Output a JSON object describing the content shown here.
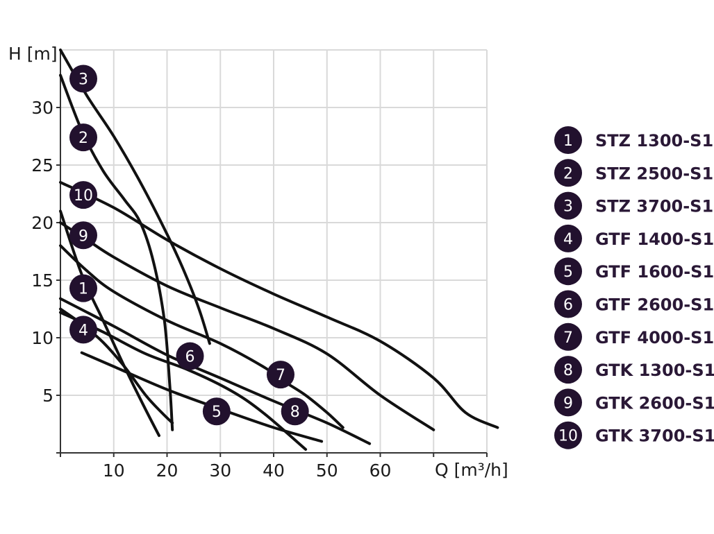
{
  "chart_data": {
    "type": "line",
    "xlabel": "Q [m³/h]",
    "ylabel": "H [m]",
    "xlim": [
      0,
      80
    ],
    "ylim": [
      0,
      35
    ],
    "x_ticks": [
      10,
      20,
      30,
      40,
      50,
      60
    ],
    "y_ticks": [
      5,
      10,
      15,
      20,
      25,
      30
    ],
    "grid": true,
    "legend": "right",
    "colors": {
      "curve": "#111111",
      "marker": "#22112e",
      "legend_text": "#2a1836",
      "grid": "#d9d9d9"
    },
    "series": [
      {
        "id": "1",
        "name": "STZ 1300-S1",
        "marker": [
          4.3,
          14.3
        ],
        "points": [
          [
            0,
            21
          ],
          [
            4,
            15.5
          ],
          [
            8,
            11.5
          ],
          [
            12,
            7.5
          ],
          [
            15.5,
            4.2
          ],
          [
            18.5,
            1.5
          ]
        ]
      },
      {
        "id": "2",
        "name": "STZ 2500-S1",
        "marker": [
          4.3,
          27.4
        ],
        "points": [
          [
            0,
            32.8
          ],
          [
            4,
            28
          ],
          [
            8,
            24.5
          ],
          [
            12,
            22
          ],
          [
            15,
            20
          ],
          [
            17.5,
            16.5
          ],
          [
            19.5,
            11.5
          ],
          [
            20.5,
            6
          ],
          [
            21,
            2
          ]
        ]
      },
      {
        "id": "3",
        "name": "STZ 3700-S1",
        "marker": [
          4.3,
          32.5
        ],
        "points": [
          [
            0,
            35
          ],
          [
            5,
            31
          ],
          [
            10,
            27.5
          ],
          [
            15,
            23.5
          ],
          [
            20,
            19
          ],
          [
            23,
            16
          ],
          [
            26,
            12.5
          ],
          [
            28,
            9.5
          ]
        ]
      },
      {
        "id": "4",
        "name": "GTF 1400-S1",
        "marker": [
          4.3,
          10.7
        ],
        "points": [
          [
            0,
            12.5
          ],
          [
            4,
            11.2
          ],
          [
            8,
            9.6
          ],
          [
            12,
            7.5
          ],
          [
            16,
            5
          ],
          [
            19,
            3.5
          ],
          [
            21,
            2.6
          ]
        ]
      },
      {
        "id": "5",
        "name": "GTF 1600-S1",
        "marker": [
          29.3,
          3.6
        ],
        "points": [
          [
            4,
            8.7
          ],
          [
            10,
            7.5
          ],
          [
            20,
            5.5
          ],
          [
            30,
            3.8
          ],
          [
            40,
            2.2
          ],
          [
            49,
            1
          ]
        ]
      },
      {
        "id": "6",
        "name": "GTF 2600-S1",
        "marker": [
          24.3,
          8.4
        ],
        "points": [
          [
            0,
            12.2
          ],
          [
            8,
            10.5
          ],
          [
            16,
            8.6
          ],
          [
            24,
            7.2
          ],
          [
            32,
            5.4
          ],
          [
            38,
            3.5
          ],
          [
            46,
            0.3
          ]
        ]
      },
      {
        "id": "7",
        "name": "GTF 4000-S1",
        "marker": [
          41.3,
          6.8
        ],
        "points": [
          [
            0,
            18
          ],
          [
            5,
            15.8
          ],
          [
            10,
            14
          ],
          [
            20,
            11.5
          ],
          [
            30,
            9.5
          ],
          [
            38,
            7.5
          ],
          [
            42,
            6.2
          ],
          [
            46,
            5
          ],
          [
            50,
            3.5
          ],
          [
            53,
            2.2
          ]
        ]
      },
      {
        "id": "8",
        "name": "GTK 1300-S1",
        "marker": [
          44,
          3.6
        ],
        "points": [
          [
            0,
            13.4
          ],
          [
            10,
            11
          ],
          [
            20,
            8.5
          ],
          [
            30,
            6.5
          ],
          [
            40,
            4.5
          ],
          [
            50,
            2.6
          ],
          [
            58,
            0.8
          ]
        ]
      },
      {
        "id": "9",
        "name": "GTK 2600-S1",
        "marker": [
          4.3,
          18.9
        ],
        "points": [
          [
            0,
            20
          ],
          [
            5,
            18.5
          ],
          [
            10,
            17
          ],
          [
            20,
            14.5
          ],
          [
            30,
            12.6
          ],
          [
            40,
            10.8
          ],
          [
            50,
            8.6
          ],
          [
            60,
            5
          ],
          [
            70,
            2
          ]
        ]
      },
      {
        "id": "10",
        "name": "GTK 3700-S1",
        "marker": [
          4.3,
          22.4
        ],
        "points": [
          [
            0,
            23.5
          ],
          [
            10,
            21.3
          ],
          [
            20,
            18.5
          ],
          [
            30,
            16
          ],
          [
            40,
            13.8
          ],
          [
            50,
            11.8
          ],
          [
            60,
            9.7
          ],
          [
            70,
            6.5
          ],
          [
            76,
            3.5
          ],
          [
            82,
            2.2
          ]
        ]
      }
    ]
  }
}
